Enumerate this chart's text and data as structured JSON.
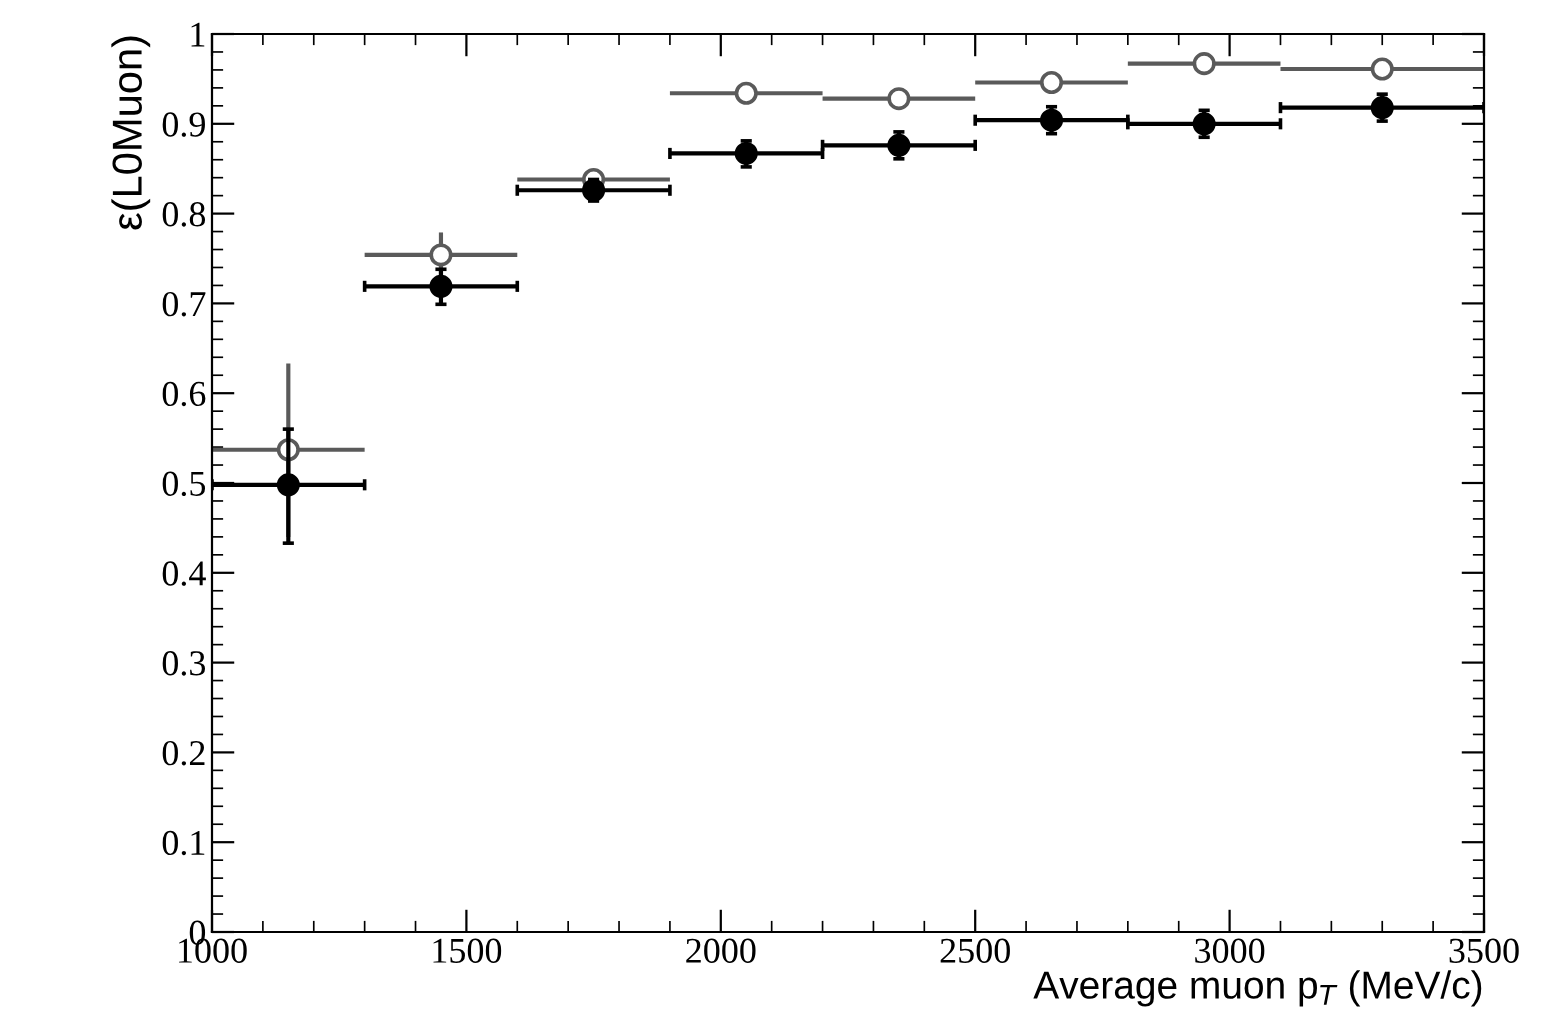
{
  "chart_data": {
    "type": "scatter",
    "xlabel": "Average muon p$_{T}$ (MeV/c)",
    "ylabel": "ε(L0Muon)",
    "xlim": [
      1000,
      3500
    ],
    "ylim": [
      0,
      1
    ],
    "xticks": [
      1000,
      1500,
      2000,
      2500,
      3000,
      3500
    ],
    "yticks": [
      0,
      0.1,
      0.2,
      0.3,
      0.4,
      0.5,
      0.6,
      0.7,
      0.8,
      0.9,
      1
    ],
    "grid": false,
    "legend": false,
    "series": [
      {
        "color": "#5a5a5a",
        "marker": "circle",
        "x": [
          1150,
          1450,
          1750,
          2050,
          2350,
          2650,
          2950,
          3300
        ],
        "values": [
          0.537,
          0.754,
          0.838,
          0.934,
          0.928,
          0.946,
          0.967,
          0.961
        ],
        "errors": [
          [
            0.44,
            0.633
          ],
          [
            0.73,
            0.779
          ],
          null,
          [
            0.928,
            0.94
          ],
          [
            0.918,
            0.938
          ],
          [
            0.936,
            0.956
          ],
          [
            0.96,
            0.974
          ],
          [
            0.954,
            0.968
          ]
        ],
        "xerrors": [
          [
            1000,
            1300
          ],
          [
            1300,
            1600
          ],
          [
            1600,
            1900
          ],
          [
            1900,
            2200
          ],
          [
            2200,
            2500
          ],
          [
            2500,
            2800
          ],
          [
            2800,
            3100
          ],
          [
            3100,
            3500
          ]
        ]
      },
      {
        "color": "#000000",
        "marker": "circle",
        "x": [
          1150,
          1450,
          1750,
          2050,
          2350,
          2650,
          2950,
          3300
        ],
        "values": [
          0.498,
          0.719,
          0.826,
          0.867,
          0.876,
          0.904,
          0.9,
          0.918
        ],
        "errors": [
          [
            0.433,
            0.56
          ],
          [
            0.699,
            0.738
          ],
          [
            0.814,
            0.838
          ],
          [
            0.852,
            0.881
          ],
          [
            0.861,
            0.891
          ],
          [
            0.889,
            0.919
          ],
          [
            0.885,
            0.915
          ],
          [
            0.903,
            0.933
          ]
        ],
        "xerrors": [
          [
            1000,
            1300
          ],
          [
            1300,
            1600
          ],
          [
            1600,
            1900
          ],
          [
            1900,
            2200
          ],
          [
            2200,
            2500
          ],
          [
            2500,
            2800
          ],
          [
            2800,
            3100
          ],
          [
            3100,
            3500
          ]
        ]
      }
    ]
  }
}
